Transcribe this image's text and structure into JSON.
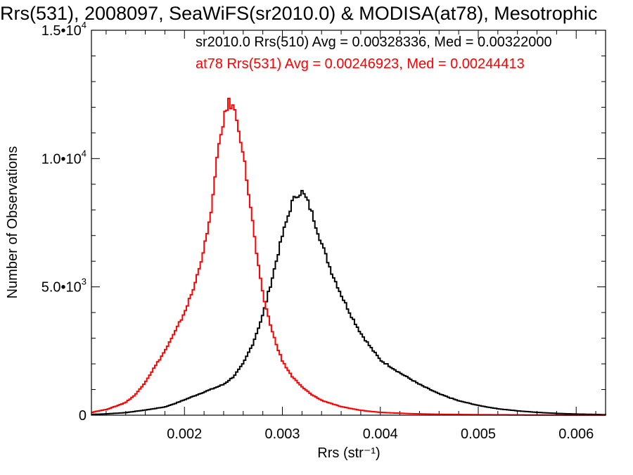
{
  "chart_data": {
    "type": "line",
    "title": "Rrs(531), 2008097, SeaWiFS(sr2010.0) & MODISA(at78), Mesotrophic",
    "xlabel": "Rrs (str⁻¹)",
    "ylabel": "Number of Observations",
    "xlim": [
      0.00105,
      0.0063
    ],
    "ylim": [
      0,
      15000
    ],
    "x_ticks": [
      0.002,
      0.003,
      0.004,
      0.005,
      0.006
    ],
    "x_tick_labels": [
      "0.002",
      "0.003",
      "0.004",
      "0.005",
      "0.006"
    ],
    "y_ticks": [
      0,
      5000,
      10000,
      15000
    ],
    "y_tick_labels": [
      "0",
      "5.0•10³",
      "1.0•10⁴",
      "1.5•10⁴"
    ],
    "grid": false,
    "legend_placement": "top-right",
    "colors": {
      "sr2010": "#000000",
      "at78": "#ff0000"
    },
    "series": [
      {
        "name": "sr2010.0",
        "legend_text": "sr2010.0 Rrs(510) Avg = 0.00328336, Med = 0.00322000",
        "color": "#000000",
        "x": [
          0.00105,
          0.0012,
          0.0014,
          0.0016,
          0.0018,
          0.0019,
          0.002,
          0.0021,
          0.0022,
          0.0023,
          0.0024,
          0.0025,
          0.0026,
          0.0027,
          0.0028,
          0.0029,
          0.003,
          0.0031,
          0.00315,
          0.0032,
          0.00325,
          0.0033,
          0.0034,
          0.0035,
          0.0036,
          0.0037,
          0.0038,
          0.0039,
          0.004,
          0.0042,
          0.0044,
          0.0046,
          0.0048,
          0.005,
          0.0052,
          0.0054,
          0.0056,
          0.0058,
          0.006,
          0.0063
        ],
        "values": [
          30,
          50,
          100,
          200,
          320,
          450,
          600,
          750,
          900,
          1050,
          1200,
          1500,
          2000,
          2800,
          3900,
          5400,
          7000,
          8300,
          8600,
          8700,
          8400,
          7900,
          6700,
          5600,
          4700,
          3900,
          3200,
          2650,
          2150,
          1650,
          1200,
          830,
          560,
          380,
          250,
          170,
          110,
          70,
          45,
          20
        ]
      },
      {
        "name": "at78",
        "legend_text": "at78 Rrs(531) Avg = 0.00246923, Med = 0.00244413",
        "color": "#ff0000",
        "x": [
          0.00105,
          0.0011,
          0.0012,
          0.0013,
          0.0014,
          0.0015,
          0.0016,
          0.0017,
          0.0018,
          0.0019,
          0.002,
          0.0021,
          0.0022,
          0.00225,
          0.0023,
          0.00235,
          0.0024,
          0.00245,
          0.0025,
          0.00255,
          0.0026,
          0.00265,
          0.0027,
          0.00275,
          0.0028,
          0.0029,
          0.003,
          0.0031,
          0.0032,
          0.0033,
          0.0034,
          0.0036,
          0.0038,
          0.004,
          0.0043,
          0.0046,
          0.005,
          0.0055,
          0.0063
        ],
        "values": [
          100,
          150,
          220,
          350,
          500,
          800,
          1300,
          1900,
          2500,
          3200,
          4000,
          5000,
          6500,
          7400,
          8800,
          10500,
          11500,
          12200,
          12000,
          11300,
          10200,
          8800,
          7400,
          5900,
          4700,
          3200,
          2100,
          1500,
          1100,
          800,
          580,
          330,
          190,
          110,
          60,
          35,
          18,
          8,
          2
        ]
      }
    ]
  }
}
